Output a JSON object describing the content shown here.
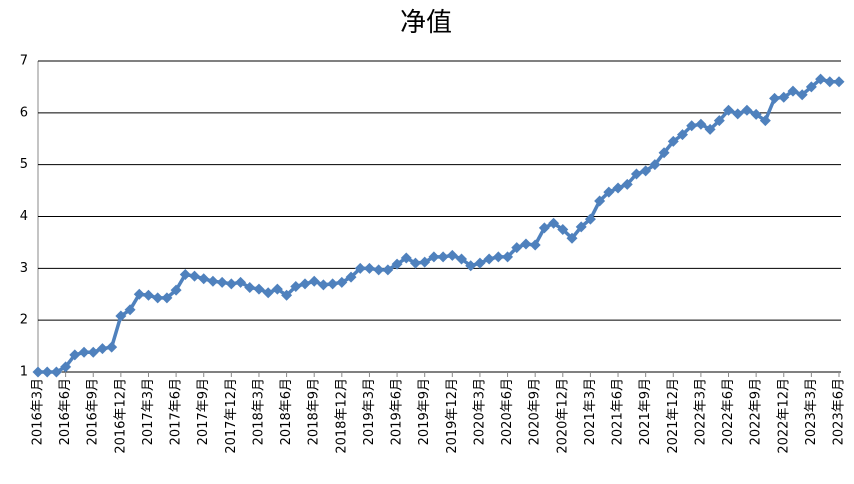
{
  "chart_data": {
    "type": "line",
    "title": "净值",
    "categories": [
      "2016年3月",
      null,
      null,
      "2016年6月",
      null,
      null,
      "2016年9月",
      null,
      null,
      "2016年12月",
      null,
      null,
      "2017年3月",
      null,
      null,
      "2017年6月",
      null,
      null,
      "2017年9月",
      null,
      null,
      "2017年12月",
      null,
      null,
      "2018年3月",
      null,
      null,
      "2018年6月",
      null,
      null,
      "2018年9月",
      null,
      null,
      "2018年12月",
      null,
      null,
      "2019年3月",
      null,
      null,
      "2019年6月",
      null,
      null,
      "2019年9月",
      null,
      null,
      "2019年12月",
      null,
      null,
      "2020年3月",
      null,
      null,
      "2020年6月",
      null,
      null,
      "2020年9月",
      null,
      null,
      "2020年12月",
      null,
      null,
      "2021年3月",
      null,
      null,
      "2021年6月",
      null,
      null,
      "2021年9月",
      null,
      null,
      "2021年12月",
      null,
      null,
      "2022年3月",
      null,
      null,
      "2022年6月",
      null,
      null,
      "2022年9月",
      null,
      null,
      "2022年12月",
      null,
      null,
      "2023年3月",
      null,
      null,
      "2023年6月"
    ],
    "values": [
      1.0,
      1.0,
      1.0,
      1.1,
      1.33,
      1.38,
      1.38,
      1.45,
      1.48,
      2.08,
      2.2,
      2.5,
      2.48,
      2.43,
      2.43,
      2.58,
      2.88,
      2.85,
      2.8,
      2.75,
      2.73,
      2.7,
      2.73,
      2.63,
      2.6,
      2.53,
      2.6,
      2.48,
      2.65,
      2.7,
      2.75,
      2.68,
      2.7,
      2.73,
      2.83,
      3.0,
      3.0,
      2.97,
      2.97,
      3.08,
      3.2,
      3.1,
      3.12,
      3.22,
      3.22,
      3.25,
      3.18,
      3.05,
      3.1,
      3.18,
      3.22,
      3.22,
      3.4,
      3.47,
      3.45,
      3.78,
      3.87,
      3.75,
      3.58,
      3.8,
      3.95,
      4.3,
      4.47,
      4.55,
      4.62,
      4.82,
      4.88,
      5.0,
      5.23,
      5.45,
      5.58,
      5.75,
      5.78,
      5.68,
      5.85,
      6.05,
      5.98,
      6.05,
      5.97,
      5.85,
      6.28,
      6.3,
      6.42,
      6.35,
      6.5,
      6.65,
      6.6,
      6.6
    ],
    "color": "#4f81bd",
    "ylim": [
      1,
      7
    ],
    "yticks": [
      1,
      2,
      3,
      4,
      5,
      6,
      7
    ],
    "grid": true
  }
}
